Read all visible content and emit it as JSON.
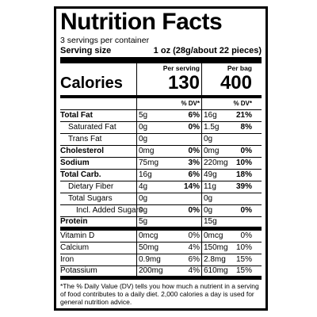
{
  "title": "Nutrition Facts",
  "servings": "3 servings per container",
  "serving_size": {
    "label": "Serving size",
    "value": "1 oz (28g/about 22 pieces)"
  },
  "columns": [
    "Per serving",
    "Per bag"
  ],
  "calories": {
    "label": "Calories",
    "values": [
      "130",
      "400"
    ]
  },
  "dv_header": [
    "% DV*",
    "% DV*"
  ],
  "rows": [
    {
      "label": "Total Fat",
      "bold": true,
      "serving": {
        "amount": "5g",
        "dv": "6%"
      },
      "bag": {
        "amount": "16g",
        "dv": "21%"
      }
    },
    {
      "label": "Saturated Fat",
      "indent": 1,
      "serving": {
        "amount": "0g",
        "dv": "0%"
      },
      "bag": {
        "amount": "1.5g",
        "dv": "8%"
      }
    },
    {
      "label": "Trans Fat",
      "indent": 1,
      "serving": {
        "amount": "0g"
      },
      "bag": {
        "amount": "0g"
      }
    },
    {
      "label": "Cholesterol",
      "bold": true,
      "serving": {
        "amount": "0mg",
        "dv": "0%"
      },
      "bag": {
        "amount": "0mg",
        "dv": "0%"
      }
    },
    {
      "label": "Sodium",
      "bold": true,
      "serving": {
        "amount": "75mg",
        "dv": "3%"
      },
      "bag": {
        "amount": "220mg",
        "dv": "10%"
      }
    },
    {
      "label": "Total Carb.",
      "bold": true,
      "serving": {
        "amount": "16g",
        "dv": "6%"
      },
      "bag": {
        "amount": "49g",
        "dv": "18%"
      }
    },
    {
      "label": "Dietary Fiber",
      "indent": 1,
      "serving": {
        "amount": "4g",
        "dv": "14%"
      },
      "bag": {
        "amount": "11g",
        "dv": "39%"
      }
    },
    {
      "label": "Total Sugars",
      "indent": 1,
      "serving": {
        "amount": "0g"
      },
      "bag": {
        "amount": "0g"
      }
    },
    {
      "label": "Incl. Added Sugars",
      "indent": 2,
      "serving": {
        "amount": "0g",
        "dv": "0%"
      },
      "bag": {
        "amount": "0g",
        "dv": "0%"
      }
    },
    {
      "label": "Protein",
      "bold": true,
      "thick_after": true,
      "serving": {
        "amount": "5g"
      },
      "bag": {
        "amount": "15g"
      }
    },
    {
      "label": "Vitamin D",
      "vitamin": true,
      "serving": {
        "amount": "0mcg",
        "dv": "0%"
      },
      "bag": {
        "amount": "0mcg",
        "dv": "0%"
      }
    },
    {
      "label": "Calcium",
      "vitamin": true,
      "serving": {
        "amount": "50mg",
        "dv": "4%"
      },
      "bag": {
        "amount": "150mg",
        "dv": "10%"
      }
    },
    {
      "label": "Iron",
      "vitamin": true,
      "serving": {
        "amount": "0.9mg",
        "dv": "6%"
      },
      "bag": {
        "amount": "2.8mg",
        "dv": "15%"
      }
    },
    {
      "label": "Potassium",
      "vitamin": true,
      "thick_after": true,
      "serving": {
        "amount": "200mg",
        "dv": "4%"
      },
      "bag": {
        "amount": "610mg",
        "dv": "15%"
      }
    }
  ],
  "footnote": "*The % Daily Value (DV) tells you how much a nutrient in a serving of food contributes to a daily diet. 2,000 calories a day is used for general nutrition advice."
}
